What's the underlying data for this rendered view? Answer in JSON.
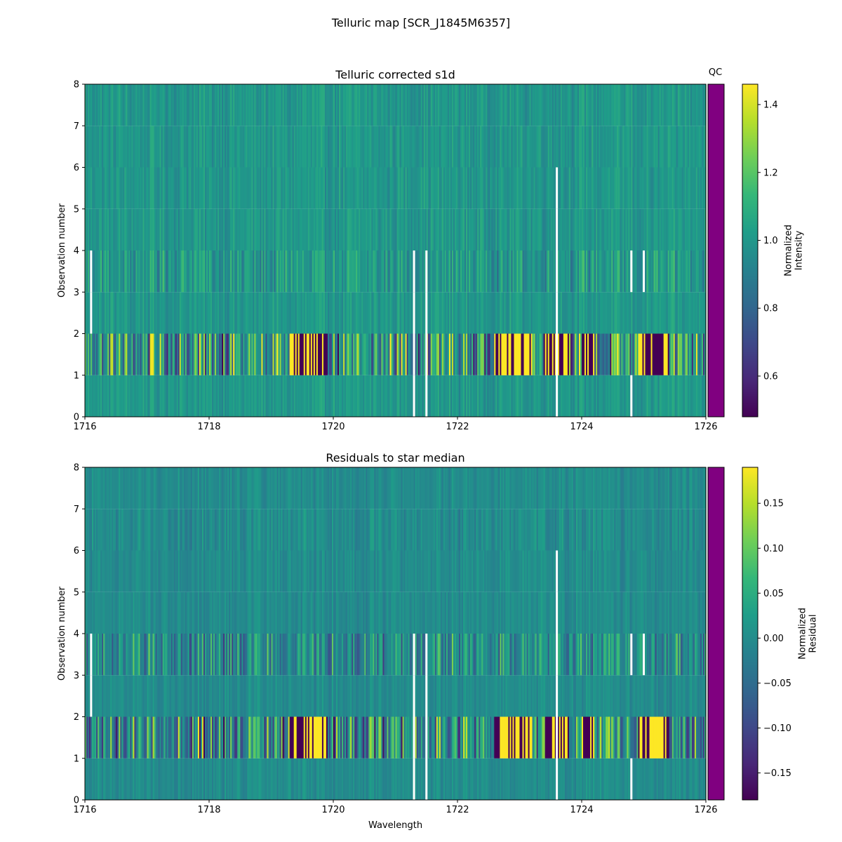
{
  "figure_title": "Telluric map [SCR_J1845M6357]",
  "qc_label": "QC",
  "qc_color": "#800080",
  "chart_data": [
    {
      "type": "heatmap",
      "title": "Telluric corrected s1d",
      "xlabel": "",
      "ylabel": "Observation number",
      "xlim": [
        1716,
        1726
      ],
      "ylim": [
        0,
        8
      ],
      "xticks": [
        {
          "value": 1716,
          "label": "1716"
        },
        {
          "value": 1718,
          "label": "1718"
        },
        {
          "value": 1720,
          "label": "1720"
        },
        {
          "value": 1722,
          "label": "1722"
        },
        {
          "value": 1724,
          "label": "1724"
        },
        {
          "value": 1726,
          "label": "1726"
        }
      ],
      "yticks": [
        {
          "value": 0,
          "label": "0"
        },
        {
          "value": 1,
          "label": "1"
        },
        {
          "value": 2,
          "label": "2"
        },
        {
          "value": 3,
          "label": "3"
        },
        {
          "value": 4,
          "label": "4"
        },
        {
          "value": 5,
          "label": "5"
        },
        {
          "value": 6,
          "label": "6"
        },
        {
          "value": 7,
          "label": "7"
        },
        {
          "value": 8,
          "label": "8"
        }
      ],
      "colormap": "viridis",
      "colorbar": {
        "label_line1": "Normalized",
        "label_line2": "Intensity",
        "range": [
          0.48,
          1.46
        ],
        "ticks": [
          {
            "value": 0.6,
            "label": "0.6"
          },
          {
            "value": 0.8,
            "label": "0.8"
          },
          {
            "value": 1.0,
            "label": "1.0"
          },
          {
            "value": 1.2,
            "label": "1.2"
          },
          {
            "value": 1.4,
            "label": "1.4"
          }
        ]
      },
      "rows": [
        {
          "obs": 0,
          "center": 1.0,
          "amplitude": 0.1
        },
        {
          "obs": 1,
          "center": 1.0,
          "amplitude": 0.55
        },
        {
          "obs": 2,
          "center": 1.0,
          "amplitude": 0.1
        },
        {
          "obs": 3,
          "center": 1.0,
          "amplitude": 0.2
        },
        {
          "obs": 4,
          "center": 1.0,
          "amplitude": 0.1
        },
        {
          "obs": 5,
          "center": 1.0,
          "amplitude": 0.1
        },
        {
          "obs": 6,
          "center": 1.0,
          "amplitude": 0.1
        },
        {
          "obs": 7,
          "center": 1.0,
          "amplitude": 0.1
        }
      ],
      "strong_bands": [
        [
          1719.3,
          1719.9
        ],
        [
          1722.6,
          1723.2
        ],
        [
          1723.4,
          1723.8
        ],
        [
          1724.0,
          1724.2
        ],
        [
          1724.9,
          1725.4
        ]
      ],
      "gaps": [
        {
          "obs": [
            2,
            3
          ],
          "x": 1716.1
        },
        {
          "obs": [
            0,
            1,
            2,
            3
          ],
          "x": 1721.3
        },
        {
          "obs": [
            0,
            1,
            2,
            3
          ],
          "x": 1721.5
        },
        {
          "obs": [
            0,
            1,
            2,
            3,
            4,
            5
          ],
          "x": 1723.6
        },
        {
          "obs": [
            0
          ],
          "x": 1724.8
        },
        {
          "obs": [
            3
          ],
          "x": 1724.8
        },
        {
          "obs": [
            3
          ],
          "x": 1725.0
        }
      ]
    },
    {
      "type": "heatmap",
      "title": "Residuals to star median",
      "xlabel": "Wavelength",
      "ylabel": "Observation number",
      "xlim": [
        1716,
        1726
      ],
      "ylim": [
        0,
        8
      ],
      "xticks": [
        {
          "value": 1716,
          "label": "1716"
        },
        {
          "value": 1718,
          "label": "1718"
        },
        {
          "value": 1720,
          "label": "1720"
        },
        {
          "value": 1722,
          "label": "1722"
        },
        {
          "value": 1724,
          "label": "1724"
        },
        {
          "value": 1726,
          "label": "1726"
        }
      ],
      "yticks": [
        {
          "value": 0,
          "label": "0"
        },
        {
          "value": 1,
          "label": "1"
        },
        {
          "value": 2,
          "label": "2"
        },
        {
          "value": 3,
          "label": "3"
        },
        {
          "value": 4,
          "label": "4"
        },
        {
          "value": 5,
          "label": "5"
        },
        {
          "value": 6,
          "label": "6"
        },
        {
          "value": 7,
          "label": "7"
        },
        {
          "value": 8,
          "label": "8"
        }
      ],
      "colormap": "viridis",
      "colorbar": {
        "label_line1": "Normalized",
        "label_line2": "Residual",
        "range": [
          -0.18,
          0.19
        ],
        "ticks": [
          {
            "value": -0.15,
            "label": "−0.15"
          },
          {
            "value": -0.1,
            "label": "−0.10"
          },
          {
            "value": -0.05,
            "label": "−0.05"
          },
          {
            "value": 0.0,
            "label": "0.00"
          },
          {
            "value": 0.05,
            "label": "0.05"
          },
          {
            "value": 0.1,
            "label": "0.10"
          },
          {
            "value": 0.15,
            "label": "0.15"
          }
        ]
      },
      "rows": [
        {
          "obs": 0,
          "center": 0.0,
          "amplitude": 0.03
        },
        {
          "obs": 1,
          "center": 0.0,
          "amplitude": 0.2
        },
        {
          "obs": 2,
          "center": 0.0,
          "amplitude": 0.03
        },
        {
          "obs": 3,
          "center": 0.0,
          "amplitude": 0.12
        },
        {
          "obs": 4,
          "center": 0.0,
          "amplitude": 0.03
        },
        {
          "obs": 5,
          "center": 0.0,
          "amplitude": 0.03
        },
        {
          "obs": 6,
          "center": 0.0,
          "amplitude": 0.04
        },
        {
          "obs": 7,
          "center": 0.0,
          "amplitude": 0.03
        }
      ],
      "strong_bands": [
        [
          1719.3,
          1719.9
        ],
        [
          1722.6,
          1723.2
        ],
        [
          1723.4,
          1723.8
        ],
        [
          1724.0,
          1724.2
        ],
        [
          1724.9,
          1725.4
        ]
      ],
      "gaps": [
        {
          "obs": [
            2,
            3
          ],
          "x": 1716.1
        },
        {
          "obs": [
            0,
            1,
            2,
            3
          ],
          "x": 1721.3
        },
        {
          "obs": [
            0,
            1,
            2,
            3
          ],
          "x": 1721.5
        },
        {
          "obs": [
            0,
            1,
            2,
            3,
            4,
            5
          ],
          "x": 1723.6
        },
        {
          "obs": [
            0
          ],
          "x": 1724.8
        },
        {
          "obs": [
            3
          ],
          "x": 1724.8
        },
        {
          "obs": [
            3
          ],
          "x": 1725.0
        }
      ]
    }
  ]
}
